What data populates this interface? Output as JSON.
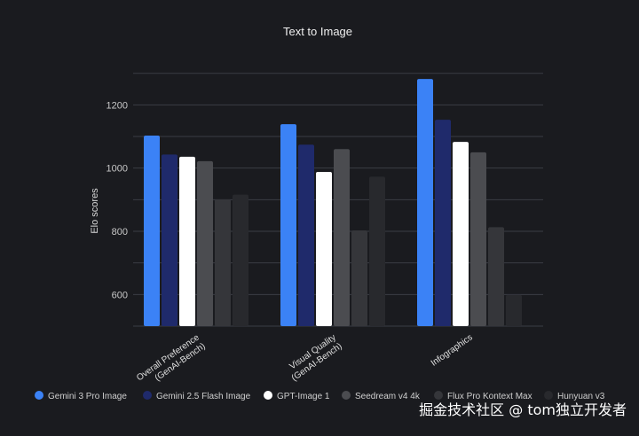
{
  "chart_data": {
    "type": "bar",
    "title": "Text to Image",
    "xlabel": "",
    "ylabel": "Elo scores",
    "ylim": [
      500,
      1330
    ],
    "yticks": [
      600,
      800,
      1000,
      1200
    ],
    "grid": true,
    "legend_position": "bottom",
    "categories": [
      [
        "Overall Preference",
        "(GenAI-Bench)"
      ],
      [
        "Visual Quality",
        "(GenAI-Bench)"
      ],
      [
        "Infographics"
      ]
    ],
    "series": [
      {
        "name": "Gemini 3 Pro Image",
        "color": "#3b82f6",
        "values": [
          1103,
          1139,
          1282
        ]
      },
      {
        "name": "Gemini 2.5 Flash Image",
        "color": "#1f2a6b",
        "values": [
          1043,
          1074,
          1153
        ]
      },
      {
        "name": "GPT-Image 1",
        "color": "#ffffff",
        "values": [
          1036,
          988,
          1083
        ]
      },
      {
        "name": "Seedream v4 4k",
        "color": "#4b4c50",
        "values": [
          1022,
          1060,
          1050
        ]
      },
      {
        "name": "Flux Pro Kontext Max",
        "color": "#35363a",
        "values": [
          901,
          803,
          813
        ]
      },
      {
        "name": "Hunyuan v3",
        "color": "#28292d",
        "values": [
          916,
          973,
          599
        ]
      }
    ]
  },
  "watermark": "掘金技术社区 @ tom独立开发者"
}
